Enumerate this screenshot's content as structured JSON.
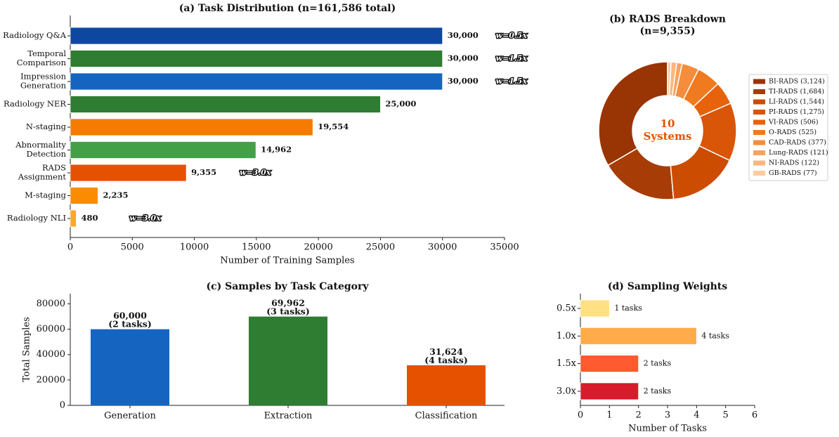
{
  "chart_data": [
    {
      "type": "barh",
      "title": "(a) Task Distribution (n=161,586 total)",
      "categories": [
        "Radiology Q&A",
        "Temporal\nComparison",
        "Impression\nGeneration",
        "Radiology NER",
        "N-staging",
        "Abnormality\nDetection",
        "RADS\nAssignment",
        "M-staging",
        "Radiology NLI"
      ],
      "values": [
        30000,
        30000,
        30000,
        25000,
        19554,
        14962,
        9355,
        2235,
        480
      ],
      "value_labels": [
        "30,000",
        "30,000",
        "30,000",
        "25,000",
        "19,554",
        "14,962",
        "9,355",
        "2,235",
        "480"
      ],
      "weights": [
        "w=0.5x",
        "w=1.5x",
        "w=1.5x",
        null,
        null,
        null,
        "w=3.0x",
        null,
        "w=3.0x"
      ],
      "colors": [
        "#0d47a1",
        "#2e7d32",
        "#1565c0",
        "#2e7d32",
        "#f57c00",
        "#43a047",
        "#e65100",
        "#fb8c00",
        "#ffa726"
      ],
      "xlim": [
        0,
        35000
      ],
      "xticks": [
        0,
        5000,
        10000,
        15000,
        20000,
        25000,
        30000,
        35000
      ],
      "xlabel": "Number of Training Samples"
    },
    {
      "type": "pie",
      "title": "(b) RADS Breakdown\n(n=9,355)",
      "center_text": "10\nSystems",
      "categories": [
        "BI-RADS",
        "TI-RADS",
        "LI-RADS",
        "PI-RADS",
        "VI-RADS",
        "O-RADS",
        "CAD-RADS",
        "Lung-RADS",
        "NI-RADS",
        "GB-RADS"
      ],
      "legend_labels": [
        "BI-RADS (3,124)",
        "TI-RADS (1,684)",
        "LI-RADS (1,544)",
        "PI-RADS (1,275)",
        "VI-RADS (506)",
        "O-RADS (525)",
        "CAD-RADS (377)",
        "Lung-RADS (121)",
        "NI-RADS (122)",
        "GB-RADS (77)"
      ],
      "values": [
        3124,
        1684,
        1544,
        1275,
        506,
        525,
        377,
        121,
        122,
        77
      ],
      "colors": [
        "#993404",
        "#a83c06",
        "#cc4c02",
        "#d95507",
        "#e8620c",
        "#f07a1f",
        "#f68d3c",
        "#f9a25c",
        "#fbb77f",
        "#fdcb9e"
      ],
      "legend": "right"
    },
    {
      "type": "bar",
      "title": "(c) Samples by Task Category",
      "categories": [
        "Generation",
        "Extraction",
        "Classification"
      ],
      "values": [
        60000,
        69962,
        31624
      ],
      "value_labels": [
        "60,000\n(2 tasks)",
        "69,962\n(3 tasks)",
        "31,624\n(4 tasks)"
      ],
      "colors": [
        "#1565c0",
        "#2e7d32",
        "#e65100"
      ],
      "ylim": [
        0,
        88000
      ],
      "yticks": [
        0,
        20000,
        40000,
        60000,
        80000
      ],
      "ylabel": "Total Samples"
    },
    {
      "type": "barh",
      "title": "(d) Sampling Weights",
      "categories": [
        "0.5x",
        "1.0x",
        "1.5x",
        "3.0x"
      ],
      "values": [
        1,
        4,
        2,
        2
      ],
      "value_labels": [
        "1 tasks",
        "4 tasks",
        "2 tasks",
        "2 tasks"
      ],
      "colors": [
        "#ffe082",
        "#ffab4a",
        "#ff5a30",
        "#d81b2a"
      ],
      "xlim": [
        0,
        6
      ],
      "xticks": [
        0,
        1,
        2,
        3,
        4,
        5,
        6
      ],
      "xlabel": "Number of Tasks"
    }
  ]
}
